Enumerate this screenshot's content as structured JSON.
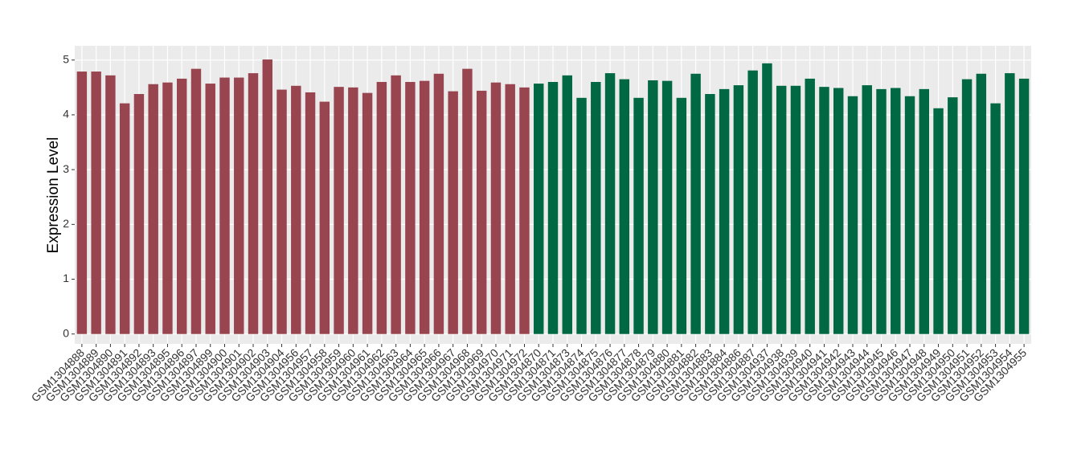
{
  "chart_data": {
    "type": "bar",
    "y_label": "Expression Level",
    "categories": [
      "GSM1304888",
      "GSM1304889",
      "GSM1304890",
      "GSM1304891",
      "GSM1304892",
      "GSM1304893",
      "GSM1304895",
      "GSM1304896",
      "GSM1304897",
      "GSM1304899",
      "GSM1304900",
      "GSM1304901",
      "GSM1304902",
      "GSM1304903",
      "GSM1304904",
      "GSM1304956",
      "GSM1304957",
      "GSM1304958",
      "GSM1304959",
      "GSM1304960",
      "GSM1304961",
      "GSM1304962",
      "GSM1304963",
      "GSM1304964",
      "GSM1304965",
      "GSM1304966",
      "GSM1304967",
      "GSM1304968",
      "GSM1304969",
      "GSM1304970",
      "GSM1304971",
      "GSM1304972",
      "GSM1304870",
      "GSM1304871",
      "GSM1304873",
      "GSM1304874",
      "GSM1304875",
      "GSM1304876",
      "GSM1304877",
      "GSM1304878",
      "GSM1304879",
      "GSM1304880",
      "GSM1304881",
      "GSM1304882",
      "GSM1304883",
      "GSM1304884",
      "GSM1304886",
      "GSM1304887",
      "GSM1304937",
      "GSM1304938",
      "GSM1304939",
      "GSM1304940",
      "GSM1304941",
      "GSM1304942",
      "GSM1304943",
      "GSM1304944",
      "GSM1304945",
      "GSM1304946",
      "GSM1304947",
      "GSM1304948",
      "GSM1304949",
      "GSM1304950",
      "GSM1304951",
      "GSM1304952",
      "GSM1304953",
      "GSM1304954",
      "GSM1304955"
    ],
    "series": [
      {
        "color": "#98454f",
        "values": [
          4.79,
          4.79,
          4.72,
          4.21,
          4.38,
          4.56,
          4.59,
          4.66,
          4.84,
          4.57,
          4.68,
          4.68,
          4.76,
          5.01,
          4.46,
          4.53,
          4.41,
          4.24,
          4.51,
          4.5,
          4.4,
          4.6,
          4.72,
          4.6,
          4.62,
          4.75,
          4.43,
          4.84,
          4.44,
          4.59,
          4.56,
          4.5,
          null,
          null,
          null,
          null,
          null,
          null,
          null,
          null,
          null,
          null,
          null,
          null,
          null,
          null,
          null,
          null,
          null,
          null,
          null,
          null,
          null,
          null,
          null,
          null,
          null,
          null,
          null,
          null,
          null,
          null,
          null,
          null,
          null,
          null,
          null
        ]
      },
      {
        "color": "#006843",
        "values": [
          null,
          null,
          null,
          null,
          null,
          null,
          null,
          null,
          null,
          null,
          null,
          null,
          null,
          null,
          null,
          null,
          null,
          null,
          null,
          null,
          null,
          null,
          null,
          null,
          null,
          null,
          null,
          null,
          null,
          null,
          null,
          null,
          4.57,
          4.6,
          4.72,
          4.31,
          4.6,
          4.76,
          4.65,
          4.31,
          4.63,
          4.62,
          4.31,
          4.75,
          4.38,
          4.47,
          4.54,
          4.81,
          4.94,
          4.53,
          4.53,
          4.66,
          4.51,
          4.49,
          4.34,
          4.54,
          4.47,
          4.49,
          4.34,
          4.47,
          4.12,
          4.32,
          4.65,
          4.75,
          4.21,
          4.76,
          4.66
        ]
      }
    ],
    "ylim": [
      -0.18,
      5.26
    ],
    "yticks": [
      0,
      1,
      2,
      3,
      4,
      5
    ],
    "grid": true
  }
}
